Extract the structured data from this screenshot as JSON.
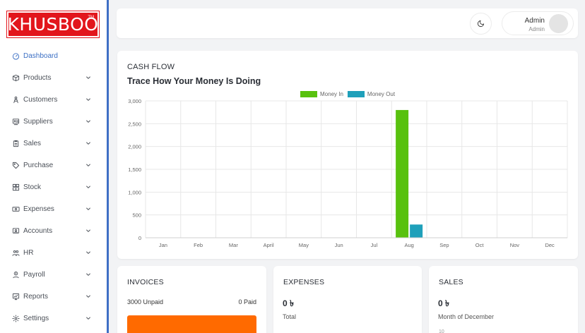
{
  "brand": {
    "logo_text": "KHUSBOO",
    "logo_mark": "TM"
  },
  "sidebar": {
    "items": [
      {
        "label": "Dashboard",
        "icon": "dashboard-icon",
        "active": true,
        "has_submenu": false
      },
      {
        "label": "Products",
        "icon": "box-icon",
        "active": false,
        "has_submenu": true
      },
      {
        "label": "Customers",
        "icon": "customers-icon",
        "active": false,
        "has_submenu": true
      },
      {
        "label": "Suppliers",
        "icon": "suppliers-icon",
        "active": false,
        "has_submenu": true
      },
      {
        "label": "Sales",
        "icon": "clipboard-icon",
        "active": false,
        "has_submenu": true
      },
      {
        "label": "Purchase",
        "icon": "tag-icon",
        "active": false,
        "has_submenu": true
      },
      {
        "label": "Stock",
        "icon": "warehouse-icon",
        "active": false,
        "has_submenu": true
      },
      {
        "label": "Expenses",
        "icon": "money-icon",
        "active": false,
        "has_submenu": true
      },
      {
        "label": "Accounts",
        "icon": "accounts-icon",
        "active": false,
        "has_submenu": true
      },
      {
        "label": "HR",
        "icon": "users-icon",
        "active": false,
        "has_submenu": true
      },
      {
        "label": "Payroll",
        "icon": "payroll-icon",
        "active": false,
        "has_submenu": true
      },
      {
        "label": "Reports",
        "icon": "reports-icon",
        "active": false,
        "has_submenu": true
      },
      {
        "label": "Settings",
        "icon": "gear-icon",
        "active": false,
        "has_submenu": true
      }
    ]
  },
  "header": {
    "theme_toggle_icon": "moon-icon",
    "user": {
      "name": "Admin",
      "role": "Admin"
    }
  },
  "cash_flow": {
    "title": "CASH FLOW",
    "subtitle": "Trace How Your Money Is Doing"
  },
  "chart_data": {
    "type": "bar",
    "title": "",
    "xlabel": "",
    "ylabel": "",
    "categories": [
      "Jan",
      "Feb",
      "Mar",
      "April",
      "May",
      "Jun",
      "Jul",
      "Aug",
      "Sep",
      "Oct",
      "Nov",
      "Dec"
    ],
    "series": [
      {
        "name": "Money In",
        "color": "#58c10e",
        "values": [
          0,
          0,
          0,
          0,
          0,
          0,
          0,
          2800,
          0,
          0,
          0,
          0
        ]
      },
      {
        "name": "Money Out",
        "color": "#1fa0ba",
        "values": [
          0,
          0,
          0,
          0,
          0,
          0,
          0,
          290,
          0,
          0,
          0,
          0
        ]
      }
    ],
    "yticks": [
      0,
      500,
      1000,
      1500,
      2000,
      2500,
      3000
    ],
    "ytick_labels": [
      "0",
      "500",
      "1,000",
      "1,500",
      "2,000",
      "2,500",
      "3,000"
    ],
    "ylim": [
      0,
      3000
    ],
    "grid": true,
    "legend": "top-center"
  },
  "invoices": {
    "title": "INVOICES",
    "unpaid": "3000 Unpaid",
    "paid": "0 Paid",
    "unpaid_fraction": 1.0,
    "bar_color": "#ff6a00"
  },
  "expenses": {
    "title": "EXPENSES",
    "amount": "0 ৳",
    "caption": "Total"
  },
  "sales": {
    "title": "SALES",
    "amount": "0 ৳",
    "caption": "Month of December",
    "peek": "10"
  }
}
